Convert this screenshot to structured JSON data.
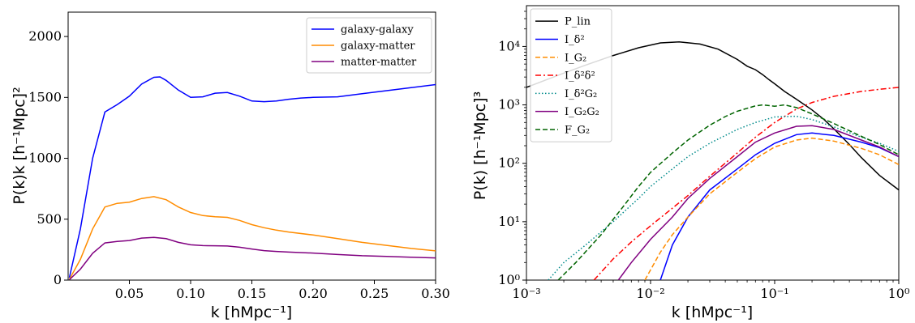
{
  "chart_data": [
    {
      "type": "line",
      "xlabel": "k  [hMpc⁻¹]",
      "ylabel": "P(k)k  [h⁻¹Mpc]²",
      "xlim": [
        0,
        0.3
      ],
      "ylim": [
        0,
        2200
      ],
      "xscale": "linear",
      "yscale": "linear",
      "xticks": [
        "0.05",
        "0.10",
        "0.15",
        "0.20",
        "0.25",
        "0.30"
      ],
      "xtick_values": [
        0.05,
        0.1,
        0.15,
        0.2,
        0.25,
        0.3
      ],
      "yticks": [
        "0",
        "500",
        "1000",
        "1500",
        "2000"
      ],
      "ytick_values": [
        0,
        500,
        1000,
        1500,
        2000
      ],
      "grid": false,
      "legend_position": "top-right",
      "series": [
        {
          "name": "galaxy-galaxy",
          "color": "#0000ff",
          "x": [
            0.001,
            0.01,
            0.02,
            0.03,
            0.04,
            0.05,
            0.06,
            0.07,
            0.075,
            0.08,
            0.09,
            0.1,
            0.11,
            0.12,
            0.13,
            0.14,
            0.15,
            0.16,
            0.17,
            0.18,
            0.19,
            0.2,
            0.22,
            0.24,
            0.26,
            0.28,
            0.3
          ],
          "y": [
            20,
            420,
            1000,
            1380,
            1440,
            1510,
            1610,
            1665,
            1668,
            1640,
            1560,
            1500,
            1505,
            1535,
            1540,
            1510,
            1470,
            1465,
            1470,
            1485,
            1495,
            1500,
            1505,
            1530,
            1555,
            1580,
            1605
          ]
        },
        {
          "name": "galaxy-matter",
          "color": "#ff8c00",
          "x": [
            0.001,
            0.01,
            0.02,
            0.03,
            0.04,
            0.05,
            0.06,
            0.07,
            0.08,
            0.09,
            0.1,
            0.11,
            0.12,
            0.13,
            0.14,
            0.15,
            0.16,
            0.17,
            0.18,
            0.2,
            0.22,
            0.24,
            0.26,
            0.28,
            0.3
          ],
          "y": [
            5,
            170,
            420,
            600,
            630,
            640,
            670,
            685,
            660,
            600,
            555,
            530,
            520,
            515,
            490,
            455,
            430,
            410,
            395,
            370,
            340,
            310,
            285,
            260,
            240
          ]
        },
        {
          "name": "matter-matter",
          "color": "#800080",
          "x": [
            0.001,
            0.01,
            0.02,
            0.03,
            0.04,
            0.05,
            0.06,
            0.07,
            0.08,
            0.09,
            0.1,
            0.11,
            0.12,
            0.13,
            0.14,
            0.15,
            0.16,
            0.17,
            0.18,
            0.2,
            0.22,
            0.24,
            0.26,
            0.28,
            0.3
          ],
          "y": [
            3,
            90,
            220,
            305,
            318,
            325,
            345,
            350,
            340,
            310,
            290,
            283,
            282,
            280,
            270,
            255,
            242,
            235,
            230,
            222,
            210,
            200,
            195,
            188,
            182
          ]
        }
      ]
    },
    {
      "type": "line",
      "xlabel": "k  [hMpc⁻¹]",
      "ylabel": "P(k)  [h⁻¹Mpc]³",
      "xlim": [
        0.001,
        1.0
      ],
      "ylim": [
        1,
        50000
      ],
      "xscale": "log",
      "yscale": "log",
      "xticks": [
        "10⁻³",
        "10⁻²",
        "10⁻¹",
        "10⁰"
      ],
      "xtick_values": [
        0.001,
        0.01,
        0.1,
        1.0
      ],
      "yticks": [
        "10⁰",
        "10¹",
        "10²",
        "10³",
        "10⁴"
      ],
      "ytick_values": [
        1,
        10,
        100,
        1000,
        10000
      ],
      "grid": false,
      "legend_position": "top-left",
      "series": [
        {
          "name": "P_lin",
          "color": "#000000",
          "style": "solid",
          "x": [
            0.001,
            0.002,
            0.003,
            0.005,
            0.008,
            0.012,
            0.017,
            0.025,
            0.035,
            0.05,
            0.06,
            0.07,
            0.08,
            0.09,
            0.1,
            0.12,
            0.15,
            0.2,
            0.25,
            0.3,
            0.4,
            0.5,
            0.7,
            1.0
          ],
          "y": [
            2000,
            3500,
            4800,
            7000,
            9500,
            11500,
            12000,
            11000,
            9000,
            6000,
            4600,
            4000,
            3300,
            2700,
            2300,
            1700,
            1250,
            820,
            560,
            390,
            210,
            125,
            62,
            35
          ]
        },
        {
          "name": "I_δ²",
          "color": "#0000ff",
          "style": "solid",
          "x": [
            0.012,
            0.015,
            0.02,
            0.03,
            0.05,
            0.07,
            0.1,
            0.15,
            0.2,
            0.3,
            0.5,
            0.7,
            1.0
          ],
          "y": [
            1,
            4,
            12,
            35,
            80,
            140,
            220,
            310,
            330,
            300,
            230,
            185,
            130
          ]
        },
        {
          "name": "I_G₂",
          "color": "#ff8c00",
          "style": "dashed",
          "x": [
            0.009,
            0.012,
            0.015,
            0.02,
            0.03,
            0.05,
            0.07,
            0.1,
            0.15,
            0.2,
            0.3,
            0.5,
            0.7,
            1.0
          ],
          "y": [
            1,
            3,
            6,
            12,
            30,
            70,
            120,
            190,
            250,
            270,
            240,
            180,
            140,
            95
          ]
        },
        {
          "name": "I_δ²δ²",
          "color": "#ff0000",
          "style": "dashdot",
          "x": [
            0.0035,
            0.005,
            0.007,
            0.01,
            0.015,
            0.02,
            0.03,
            0.05,
            0.07,
            0.1,
            0.15,
            0.2,
            0.3,
            0.5,
            0.7,
            1.0
          ],
          "y": [
            1,
            2.3,
            4.5,
            8.5,
            17,
            28,
            60,
            150,
            280,
            500,
            850,
            1100,
            1400,
            1700,
            1850,
            2000
          ]
        },
        {
          "name": "I_δ²G₂",
          "color": "#008b8b",
          "style": "dotted",
          "x": [
            0.0015,
            0.002,
            0.003,
            0.005,
            0.008,
            0.01,
            0.015,
            0.02,
            0.03,
            0.05,
            0.07,
            0.1,
            0.15,
            0.2,
            0.3,
            0.5,
            0.7,
            1.0
          ],
          "y": [
            1,
            2,
            4,
            10,
            25,
            40,
            80,
            130,
            220,
            380,
            500,
            620,
            640,
            560,
            420,
            280,
            220,
            160
          ]
        },
        {
          "name": "I_G₂G₂",
          "color": "#800080",
          "style": "solid",
          "x": [
            0.0055,
            0.007,
            0.01,
            0.015,
            0.02,
            0.03,
            0.05,
            0.07,
            0.1,
            0.15,
            0.2,
            0.3,
            0.5,
            0.7,
            1.0
          ],
          "y": [
            1,
            2,
            5,
            12,
            25,
            55,
            130,
            230,
            330,
            430,
            440,
            380,
            250,
            190,
            130
          ]
        },
        {
          "name": "F_G₂",
          "color": "#006400",
          "style": "dashed",
          "x": [
            0.0018,
            0.0025,
            0.004,
            0.006,
            0.008,
            0.01,
            0.015,
            0.02,
            0.03,
            0.04,
            0.05,
            0.07,
            0.08,
            0.1,
            0.12,
            0.15,
            0.2,
            0.3,
            0.5,
            0.7,
            1.0
          ],
          "y": [
            1,
            2,
            6,
            18,
            40,
            70,
            150,
            250,
            450,
            630,
            780,
            960,
            1000,
            950,
            1000,
            900,
            700,
            480,
            290,
            210,
            140
          ]
        }
      ]
    }
  ]
}
